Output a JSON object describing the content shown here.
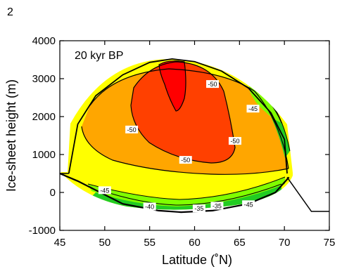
{
  "panel_label": "2",
  "chart_data": {
    "type": "contour",
    "annotation": "20 kyr BP",
    "xlabel": "Latitude (˚N)",
    "ylabel": "Ice-sheet height (m)",
    "xlim": [
      45,
      75
    ],
    "ylim": [
      -1000,
      4000
    ],
    "xticks": [
      "45",
      "50",
      "55",
      "60",
      "65",
      "70",
      "75"
    ],
    "yticks": [
      "-1000",
      "0",
      "1000",
      "2000",
      "3000",
      "4000"
    ],
    "grid": false,
    "colors": {
      "yellow": "#ffff00",
      "orange": "#ffa600",
      "red_orange": "#ff4000",
      "red": "#ff0000",
      "green_light": "#80ff00",
      "green": "#22cc22",
      "outline": "#000000"
    },
    "ice_sheet_outline": {
      "surface": [
        [
          46,
          500
        ],
        [
          47,
          1800
        ],
        [
          49,
          2550
        ],
        [
          52,
          3100
        ],
        [
          55,
          3430
        ],
        [
          57.5,
          3520
        ],
        [
          60,
          3450
        ],
        [
          63,
          3200
        ],
        [
          66,
          2750
        ],
        [
          68.5,
          2100
        ],
        [
          70,
          1400
        ],
        [
          70.3,
          500
        ]
      ],
      "base": [
        [
          45,
          500
        ],
        [
          47,
          300
        ],
        [
          52,
          -300
        ],
        [
          56,
          -480
        ],
        [
          58.5,
          -520
        ],
        [
          62,
          -480
        ],
        [
          66,
          -300
        ],
        [
          69,
          0
        ],
        [
          70.5,
          400
        ]
      ],
      "bedrock_left": [
        [
          45,
          500
        ],
        [
          46,
          500
        ]
      ],
      "bedrock_right": [
        [
          70.3,
          400
        ],
        [
          73,
          -500
        ],
        [
          75,
          -500
        ]
      ]
    },
    "contour_labels": [
      {
        "text": "-50",
        "x": 62,
        "y": 2850
      },
      {
        "text": "-45",
        "x": 66.5,
        "y": 2200
      },
      {
        "text": "-50",
        "x": 53,
        "y": 1650
      },
      {
        "text": "-50",
        "x": 64.5,
        "y": 1350
      },
      {
        "text": "-50",
        "x": 59,
        "y": 850
      },
      {
        "text": "-45",
        "x": 50,
        "y": 50
      },
      {
        "text": "-40",
        "x": 55,
        "y": -380
      },
      {
        "text": "-35",
        "x": 60.5,
        "y": -430
      },
      {
        "text": "-35",
        "x": 62.5,
        "y": -360
      },
      {
        "text": "-45",
        "x": 66,
        "y": -320
      }
    ]
  }
}
